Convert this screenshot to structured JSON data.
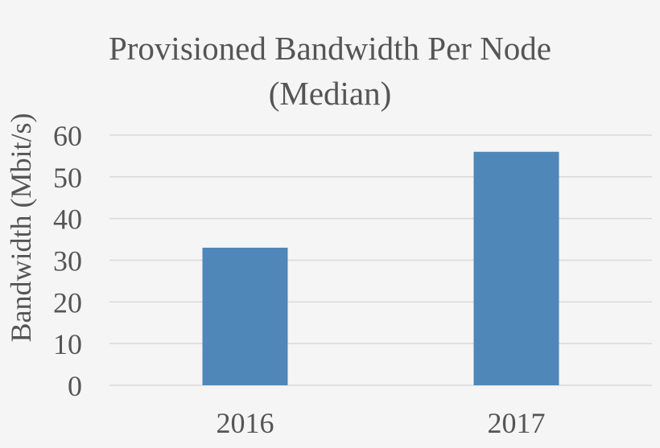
{
  "chart_data": {
    "type": "bar",
    "title_lines": [
      "Provisioned Bandwidth Per Node",
      "(Median)"
    ],
    "xlabel": "",
    "ylabel": "Bandwidth (Mbit/s)",
    "categories": [
      "2016",
      "2017"
    ],
    "values": [
      33,
      56
    ],
    "ylim": [
      0,
      60
    ],
    "yticks": [
      0,
      10,
      20,
      30,
      40,
      50,
      60
    ],
    "grid": true,
    "legend": "none",
    "bar_color": "#4f87b9",
    "grid_color": "#d9d9d9",
    "text_color": "#555555",
    "background": "#f5f5f5"
  }
}
